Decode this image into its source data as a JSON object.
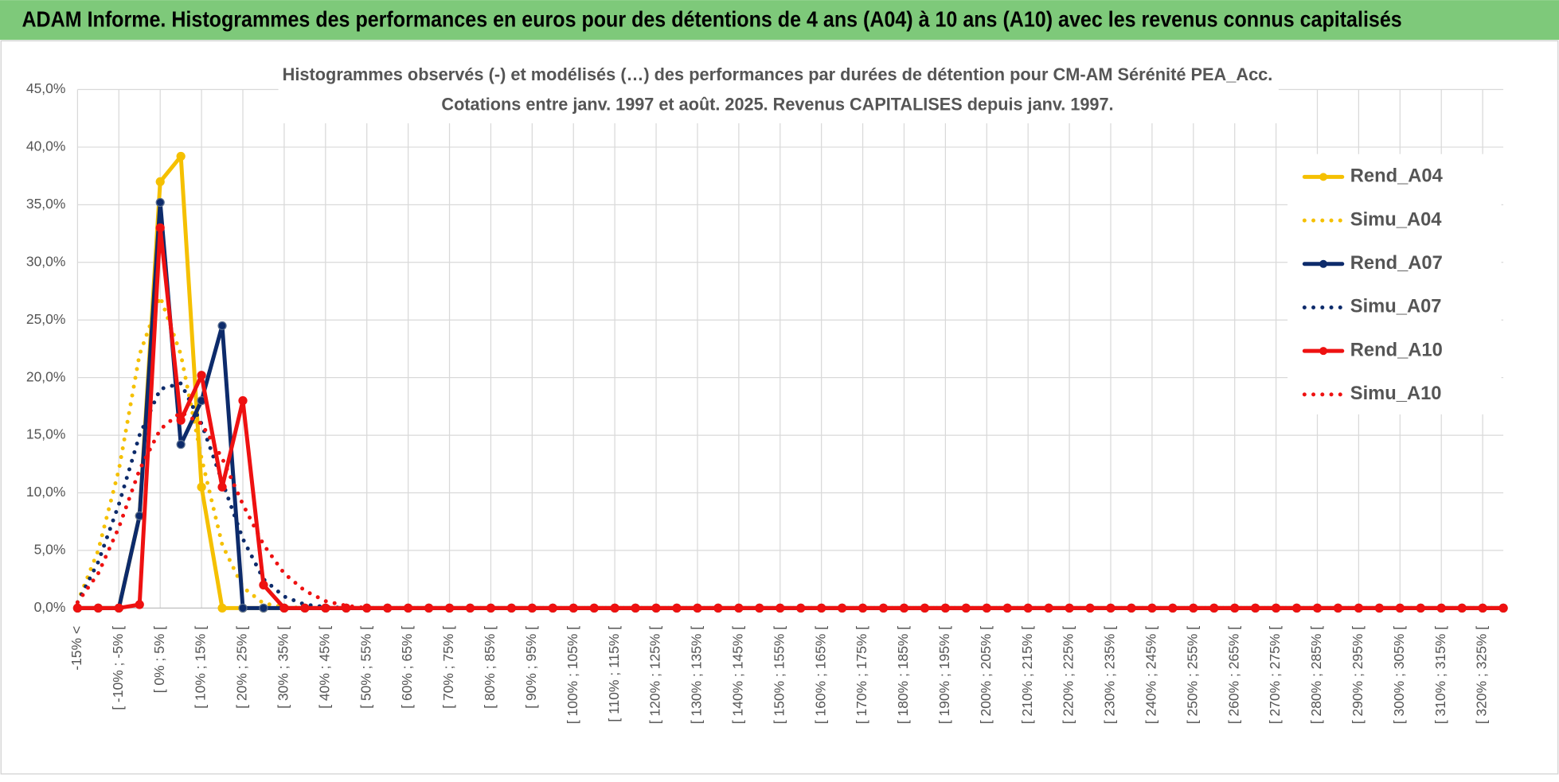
{
  "header": {
    "title": "ADAM Informe. Histogrammes des performances en euros pour des détentions de 4 ans (A04) à 10 ans (A10) avec les revenus connus capitalisés"
  },
  "chart_data": {
    "type": "line",
    "title": [
      "Histogrammes observés (-) et modélisés (…) des performances par durées de détention pour CM-AM Sérénité PEA_Acc.",
      "Cotations entre janv. 1997 et août. 2025. Revenus CAPITALISES depuis janv. 1997."
    ],
    "categories": [
      "-15% <",
      null,
      "[ -10% ; -5% [",
      null,
      "[ 0% ; 5% [",
      null,
      "[ 10% ; 15% [",
      null,
      "[ 20% ; 25% [",
      null,
      "[ 30% ; 35% [",
      null,
      "[ 40% ; 45% [",
      null,
      "[ 50% ; 55% [",
      null,
      "[ 60% ; 65% [",
      null,
      "[ 70% ; 75% [",
      null,
      "[ 80% ; 85% [",
      null,
      "[ 90% ; 95% [",
      null,
      "[ 100% ; 105% [",
      null,
      "[ 110% ; 115% [",
      null,
      "[ 120% ; 125% [",
      null,
      "[ 130% ; 135% [",
      null,
      "[ 140% ; 145% [",
      null,
      "[ 150% ; 155% [",
      null,
      "[ 160% ; 165% [",
      null,
      "[ 170% ; 175% [",
      null,
      "[ 180% ; 185% [",
      null,
      "[ 190% ; 195% [",
      null,
      "[ 200% ; 205% [",
      null,
      "[ 210% ; 215% [",
      null,
      "[ 220% ; 225% [",
      null,
      "[ 230% ; 235% [",
      null,
      "[ 240% ; 245% [",
      null,
      "[ 250% ; 255% [",
      null,
      "[ 260% ; 265% [",
      null,
      "[ 270% ; 275% [",
      null,
      "[ 280% ; 285% [",
      null,
      "[ 290% ; 295% [",
      null,
      "[ 300% ; 305% [",
      null,
      "[ 310% ; 315% [",
      null,
      "[ 320% ; 325% [",
      null
    ],
    "series": [
      {
        "name": "Rend_A04",
        "color": "#f5c000",
        "line_style": "solid",
        "values": [
          0,
          0,
          0,
          8,
          37,
          39.2,
          10.5,
          0,
          0,
          0,
          0,
          0,
          0,
          0,
          0,
          0,
          0,
          0,
          0,
          0,
          0,
          0,
          0,
          0,
          0,
          0,
          0,
          0,
          0,
          0,
          0,
          0,
          0,
          0,
          0,
          0,
          0,
          0,
          0,
          0,
          0,
          0,
          0,
          0,
          0,
          0,
          0,
          0,
          0,
          0,
          0,
          0,
          0,
          0,
          0,
          0,
          0,
          0,
          0,
          0,
          0,
          0,
          0,
          0,
          0,
          0,
          0,
          0,
          0,
          0
        ]
      },
      {
        "name": "Simu_A04",
        "color": "#f5c000",
        "line_style": "dotted",
        "values": [
          0.5,
          5,
          12,
          22,
          27,
          22,
          13,
          5.5,
          1.8,
          0.4,
          0.1,
          0,
          0,
          0,
          0,
          0,
          0,
          0,
          0,
          0,
          0,
          0,
          0,
          0,
          0,
          0,
          0,
          0,
          0,
          0,
          0,
          0,
          0,
          0,
          0,
          0,
          0,
          0,
          0,
          0,
          0,
          0,
          0,
          0,
          0,
          0,
          0,
          0,
          0,
          0,
          0,
          0,
          0,
          0,
          0,
          0,
          0,
          0,
          0,
          0,
          0,
          0,
          0,
          0,
          0,
          0,
          0,
          0,
          0,
          0
        ]
      },
      {
        "name": "Rend_A07",
        "color": "#0d2b6b",
        "line_style": "solid",
        "values": [
          0,
          0,
          0,
          8,
          35.2,
          14.2,
          18,
          24.5,
          0,
          0,
          0,
          0,
          0,
          0,
          0,
          0,
          0,
          0,
          0,
          0,
          0,
          0,
          0,
          0,
          0,
          0,
          0,
          0,
          0,
          0,
          0,
          0,
          0,
          0,
          0,
          0,
          0,
          0,
          0,
          0,
          0,
          0,
          0,
          0,
          0,
          0,
          0,
          0,
          0,
          0,
          0,
          0,
          0,
          0,
          0,
          0,
          0,
          0,
          0,
          0,
          0,
          0,
          0,
          0,
          0,
          0,
          0,
          0,
          0,
          0
        ]
      },
      {
        "name": "Simu_A07",
        "color": "#0d2b6b",
        "line_style": "dotted",
        "values": [
          0.5,
          4,
          9,
          15,
          19,
          19.5,
          16,
          11,
          6,
          2.5,
          1,
          0.3,
          0.1,
          0,
          0,
          0,
          0,
          0,
          0,
          0,
          0,
          0,
          0,
          0,
          0,
          0,
          0,
          0,
          0,
          0,
          0,
          0,
          0,
          0,
          0,
          0,
          0,
          0,
          0,
          0,
          0,
          0,
          0,
          0,
          0,
          0,
          0,
          0,
          0,
          0,
          0,
          0,
          0,
          0,
          0,
          0,
          0,
          0,
          0,
          0,
          0,
          0,
          0,
          0,
          0,
          0,
          0,
          0,
          0,
          0
        ]
      },
      {
        "name": "Rend_A10",
        "color": "#ee1111",
        "line_style": "solid",
        "values": [
          0,
          0,
          0,
          0.3,
          33,
          16.3,
          20.2,
          10.5,
          18,
          2,
          0,
          0,
          0,
          0,
          0,
          0,
          0,
          0,
          0,
          0,
          0,
          0,
          0,
          0,
          0,
          0,
          0,
          0,
          0,
          0,
          0,
          0,
          0,
          0,
          0,
          0,
          0,
          0,
          0,
          0,
          0,
          0,
          0,
          0,
          0,
          0,
          0,
          0,
          0,
          0,
          0,
          0,
          0,
          0,
          0,
          0,
          0,
          0,
          0,
          0,
          0,
          0,
          0,
          0,
          0,
          0,
          0,
          0,
          0,
          0
        ]
      },
      {
        "name": "Simu_A10",
        "color": "#ee1111",
        "line_style": "dotted",
        "values": [
          0.5,
          3,
          7,
          12,
          15.5,
          17,
          16,
          13,
          9,
          5.5,
          3,
          1.5,
          0.6,
          0.2,
          0,
          0,
          0,
          0,
          0,
          0,
          0,
          0,
          0,
          0,
          0,
          0,
          0,
          0,
          0,
          0,
          0,
          0,
          0,
          0,
          0,
          0,
          0,
          0,
          0,
          0,
          0,
          0,
          0,
          0,
          0,
          0,
          0,
          0,
          0,
          0,
          0,
          0,
          0,
          0,
          0,
          0,
          0,
          0,
          0,
          0,
          0,
          0,
          0,
          0,
          0,
          0,
          0,
          0,
          0,
          0
        ]
      }
    ],
    "ylim": [
      0,
      45
    ],
    "yticks": [
      {
        "value": 0,
        "label": "0,0%"
      },
      {
        "value": 5,
        "label": "5,0%"
      },
      {
        "value": 10,
        "label": "10,0%"
      },
      {
        "value": 15,
        "label": "15,0%"
      },
      {
        "value": 20,
        "label": "20,0%"
      },
      {
        "value": 25,
        "label": "25,0%"
      },
      {
        "value": 30,
        "label": "30,0%"
      },
      {
        "value": 35,
        "label": "35,0%"
      },
      {
        "value": 40,
        "label": "40,0%"
      },
      {
        "value": 45,
        "label": "45,0%"
      }
    ],
    "grid": true,
    "legend": "right"
  }
}
